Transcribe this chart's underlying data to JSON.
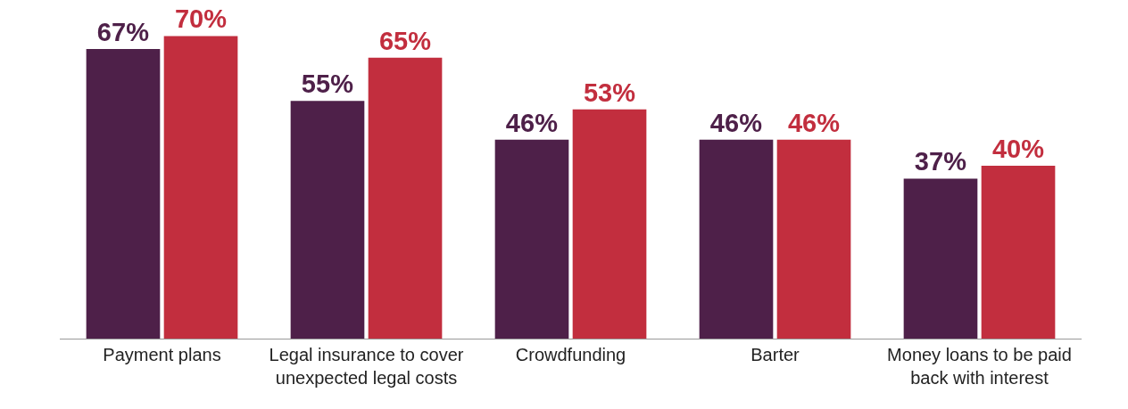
{
  "chart_data": {
    "type": "bar",
    "categories": [
      "Payment plans",
      "Legal insurance to cover unexpected legal costs",
      "Crowdfunding",
      "Barter",
      "Money loans to be paid back with interest"
    ],
    "series": [
      {
        "color": "#4e2049",
        "values": [
          67,
          55,
          46,
          46,
          37
        ],
        "value_labels": [
          "67%",
          "55%",
          "46%",
          "46%",
          "37%"
        ]
      },
      {
        "color": "#c22e3e",
        "values": [
          70,
          65,
          53,
          46,
          40
        ],
        "value_labels": [
          "70%",
          "65%",
          "53%",
          "46%",
          "40%"
        ]
      }
    ],
    "legend": false
  }
}
